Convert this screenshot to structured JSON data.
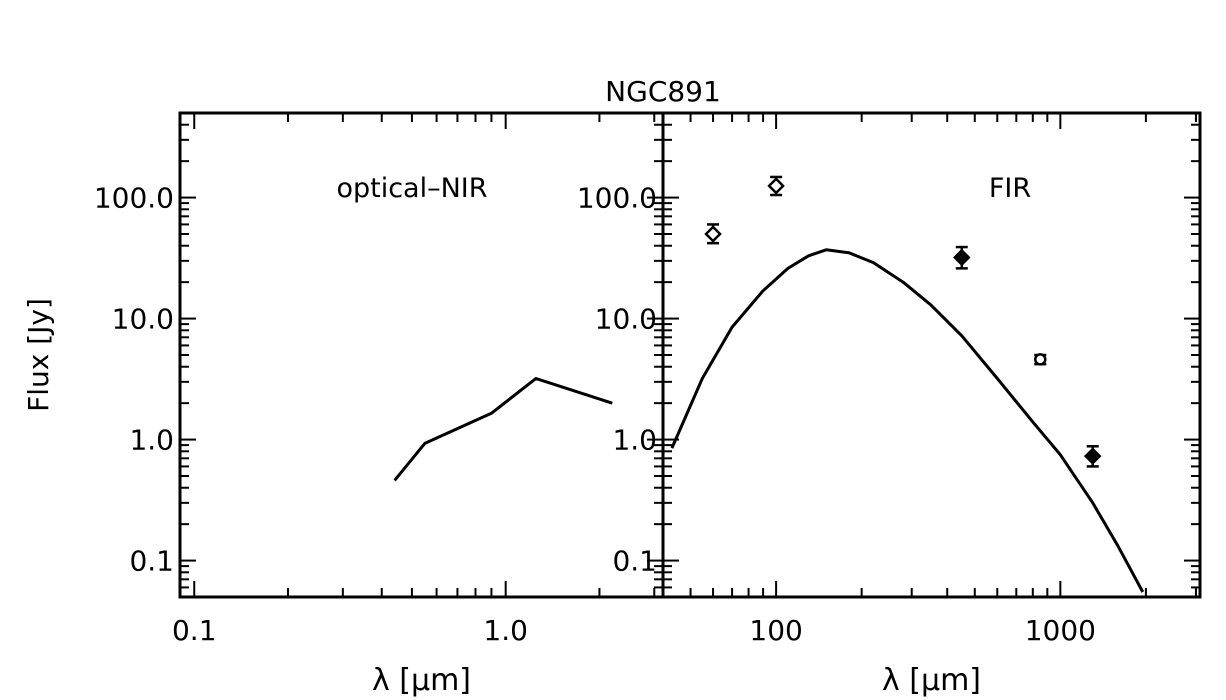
{
  "chart_data": {
    "title": "NGC891",
    "panels": [
      {
        "type": "line",
        "annotation": "optical–NIR",
        "xlabel": "λ [μm]",
        "ylabel": "Flux [Jy]",
        "xscale": "log",
        "yscale": "log",
        "xlim": [
          0.09,
          3.2
        ],
        "ylim": [
          0.05,
          500
        ],
        "x_ticklabels": [
          {
            "v": 0.1,
            "label": "0.1"
          },
          {
            "v": 1.0,
            "label": "1.0"
          }
        ],
        "y_ticklabels": [
          {
            "v": 0.1,
            "label": "0.1"
          },
          {
            "v": 1.0,
            "label": "1.0"
          },
          {
            "v": 10.0,
            "label": "10.0"
          },
          {
            "v": 100.0,
            "label": "100.0"
          }
        ],
        "series": [
          {
            "x": [
              0.44,
              0.55,
              0.9,
              1.25,
              2.2
            ],
            "y": [
              0.46,
              0.93,
              1.65,
              3.2,
              2.0
            ]
          }
        ]
      },
      {
        "type": "line+scatter",
        "annotation": "FIR",
        "xlabel": "λ [μm]",
        "xscale": "log",
        "yscale": "log",
        "xlim": [
          40,
          3100
        ],
        "ylim": [
          0.05,
          500
        ],
        "x_ticklabels": [
          {
            "v": 100,
            "label": "100"
          },
          {
            "v": 1000,
            "label": "1000"
          }
        ],
        "y_ticklabels": [
          {
            "v": 0.1,
            "label": "0.1"
          },
          {
            "v": 1.0,
            "label": "1.0"
          },
          {
            "v": 10.0,
            "label": "10.0"
          },
          {
            "v": 100.0,
            "label": "100.0"
          }
        ],
        "curve": {
          "x": [
            43,
            55,
            70,
            90,
            110,
            130,
            150,
            180,
            220,
            280,
            350,
            450,
            600,
            800,
            1000,
            1300,
            1600,
            1950
          ],
          "y": [
            0.85,
            3.2,
            8.5,
            17,
            26,
            33,
            37,
            35,
            29,
            20,
            13,
            7.2,
            3.2,
            1.4,
            0.75,
            0.3,
            0.13,
            0.055
          ]
        },
        "points": [
          {
            "x": 60,
            "y": 50,
            "yerr_lo": 42,
            "yerr_hi": 60,
            "marker": "diamond-open"
          },
          {
            "x": 100,
            "y": 125,
            "yerr_lo": 105,
            "yerr_hi": 148,
            "marker": "diamond-open"
          },
          {
            "x": 450,
            "y": 32,
            "yerr_lo": 26,
            "yerr_hi": 39,
            "marker": "diamond-filled"
          },
          {
            "x": 850,
            "y": 4.6,
            "yerr_lo": 4.2,
            "yerr_hi": 5.0,
            "marker": "circle-open"
          },
          {
            "x": 1300,
            "y": 0.73,
            "yerr_lo": 0.6,
            "yerr_hi": 0.88,
            "marker": "diamond-filled"
          }
        ]
      }
    ]
  }
}
